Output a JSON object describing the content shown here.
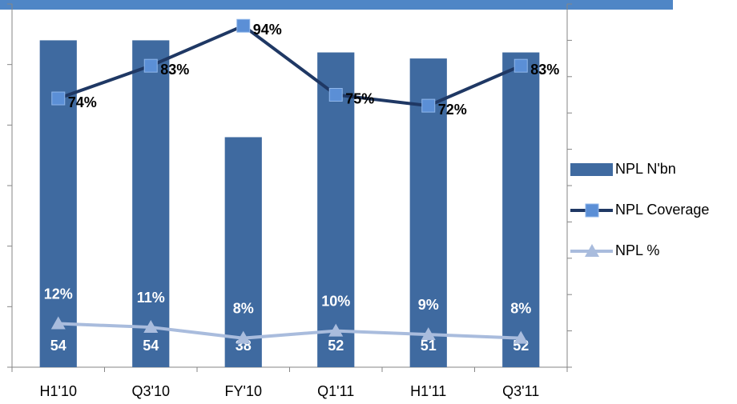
{
  "chart_data": {
    "type": "combo",
    "categories": [
      "H1'10",
      "Q3'10",
      "FY'10",
      "Q1'11",
      "H1'11",
      "Q3'11"
    ],
    "series": [
      {
        "name": "NPL N'bn",
        "type": "bar",
        "color": "#3f6aa0",
        "values": [
          54,
          54,
          38,
          52,
          51,
          52
        ]
      },
      {
        "name": "NPL Coverage",
        "type": "line",
        "axis": "y2",
        "color": "#1f3864",
        "marker": "square",
        "marker_color": "#5b8fd6",
        "values": [
          74,
          83,
          94,
          75,
          72,
          83
        ],
        "value_labels": [
          "74%",
          "83%",
          "94%",
          "75%",
          "72%",
          "83%"
        ]
      },
      {
        "name": "NPL %",
        "type": "line",
        "axis": "y2",
        "color": "#a9bcdd",
        "marker": "triangle",
        "marker_color": "#a9bcdd",
        "values": [
          12,
          11,
          8,
          10,
          9,
          8
        ],
        "value_labels": [
          "12%",
          "11%",
          "8%",
          "10%",
          "9%",
          "8%"
        ]
      }
    ],
    "ylim": [
      0,
      60
    ],
    "yticks": [
      0,
      10,
      20,
      30,
      40,
      50,
      60
    ],
    "y2lim": [
      0,
      100
    ],
    "y2ticks": [
      0,
      10,
      20,
      30,
      40,
      50,
      60,
      70,
      80,
      90,
      100
    ],
    "grid": false,
    "legend": "right"
  }
}
